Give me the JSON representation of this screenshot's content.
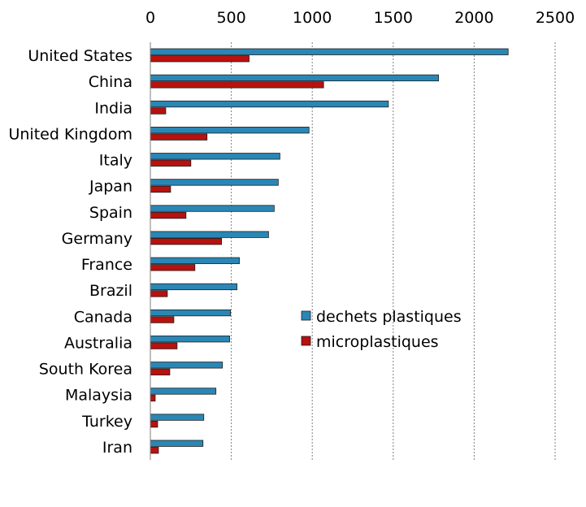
{
  "chart_data": {
    "type": "bar",
    "orientation": "horizontal",
    "categories": [
      "United States",
      "China",
      "India",
      "United Kingdom",
      "Italy",
      "Japan",
      "Spain",
      "Germany",
      "France",
      "Brazil",
      "Canada",
      "Australia",
      "South Korea",
      "Malaysia",
      "Turkey",
      "Iran"
    ],
    "series": [
      {
        "name": "dechets plastiques",
        "color": "#2a87b5",
        "values": [
          2210,
          1780,
          1470,
          980,
          800,
          790,
          765,
          730,
          550,
          535,
          495,
          490,
          445,
          405,
          330,
          325
        ]
      },
      {
        "name": "microplastiques",
        "color": "#b8110e",
        "values": [
          610,
          1070,
          95,
          350,
          250,
          125,
          220,
          440,
          275,
          105,
          145,
          165,
          120,
          30,
          45,
          50
        ]
      }
    ],
    "xlim": [
      0,
      2500
    ],
    "xticks": [
      0,
      500,
      1000,
      1500,
      2000,
      2500
    ],
    "xtick_labels": [
      "0",
      "500",
      "1000",
      "1500",
      "2000",
      "2500"
    ],
    "grid": true,
    "legend_position": "center-right",
    "title": "",
    "xlabel": "",
    "ylabel": ""
  }
}
